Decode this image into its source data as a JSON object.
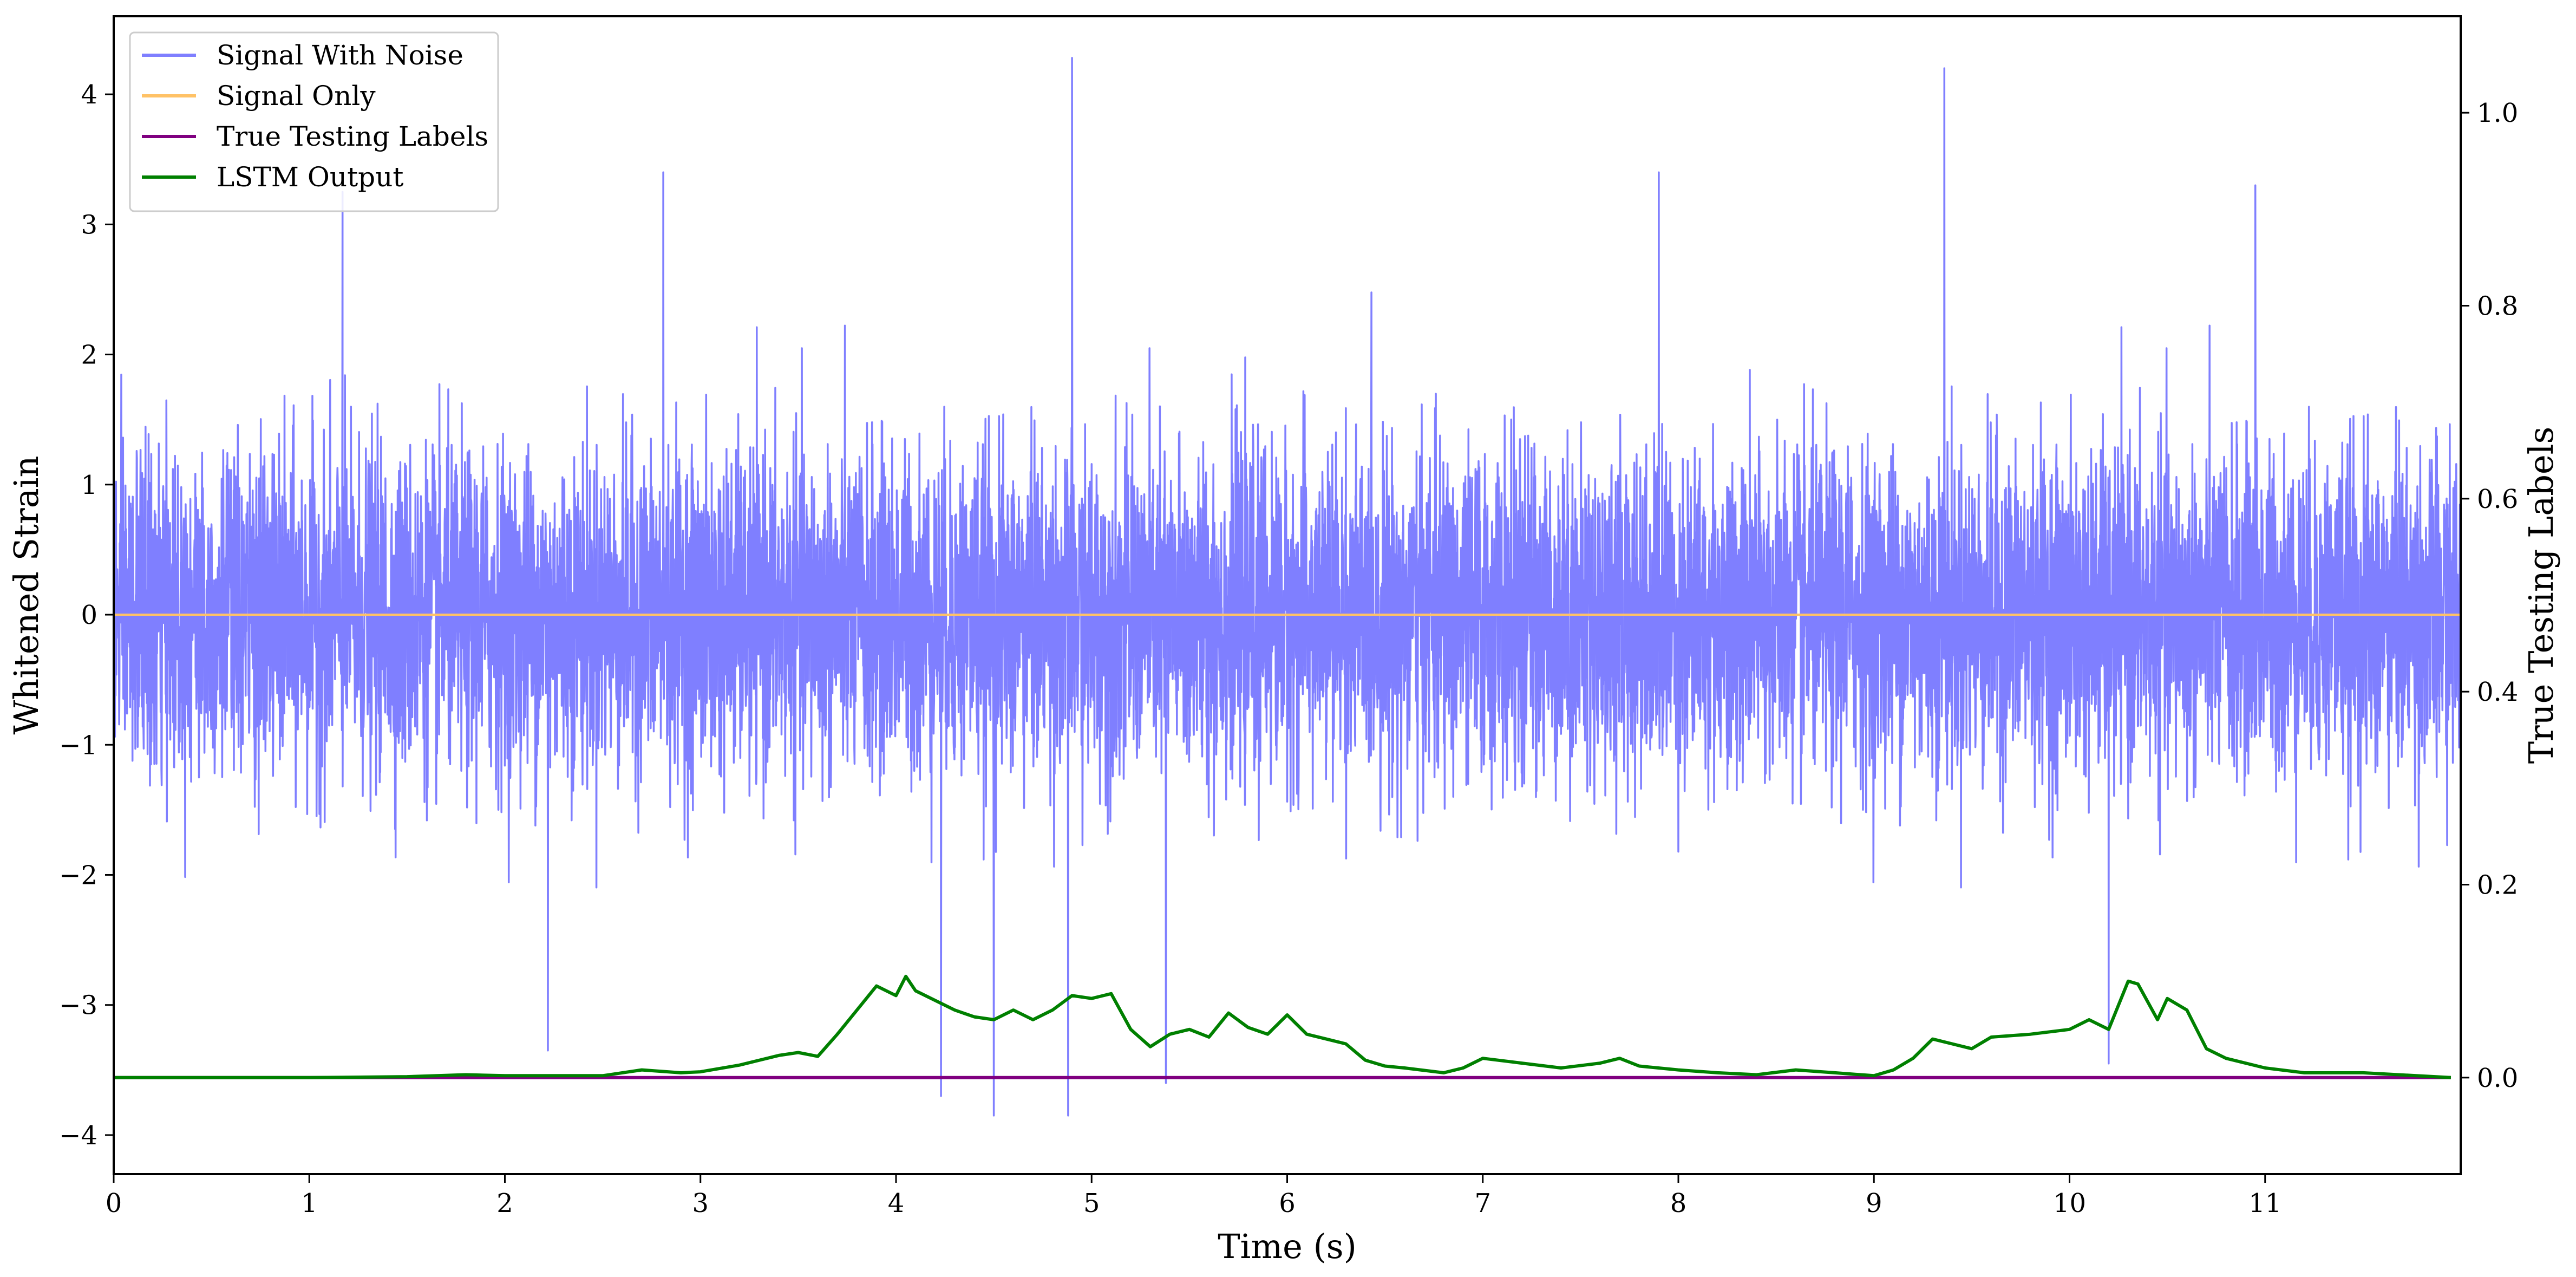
{
  "chart_data": {
    "type": "line",
    "title": "",
    "xlabel": "Time (s)",
    "ylabel_left": "Whitened Strain",
    "ylabel_right": "True Testing Labels",
    "xlim": [
      0,
      12
    ],
    "ylim_left": [
      -4.3,
      4.6
    ],
    "ylim_right": [
      -0.1,
      1.1
    ],
    "x_ticks": [
      0,
      1,
      2,
      3,
      4,
      5,
      6,
      7,
      8,
      9,
      10,
      11
    ],
    "y_ticks_left": [
      -4,
      -3,
      -2,
      -1,
      0,
      1,
      2,
      3,
      4
    ],
    "y_ticks_right": [
      0.0,
      0.2,
      0.4,
      0.6,
      0.8,
      1.0
    ],
    "y_tick_labels_left": [
      "−4",
      "−3",
      "−2",
      "−1",
      "0",
      "1",
      "2",
      "3",
      "4"
    ],
    "y_tick_labels_right": [
      "0.0",
      "0.2",
      "0.4",
      "0.6",
      "0.8",
      "1.0"
    ],
    "grid": false,
    "legend_position": "top-left",
    "series": [
      {
        "name": "Signal With Noise",
        "axis": "left",
        "color": "#7f7fff",
        "style": "dense noise trace",
        "x_range": [
          0,
          12
        ],
        "approx_envelope": [
          -2.0,
          2.0
        ],
        "spikes": [
          {
            "x": 1.17,
            "y": 3.25
          },
          {
            "x": 2.81,
            "y": 3.4
          },
          {
            "x": 4.9,
            "y": 4.28
          },
          {
            "x": 7.9,
            "y": 3.4
          },
          {
            "x": 9.36,
            "y": 4.2
          },
          {
            "x": 10.95,
            "y": 3.3
          },
          {
            "x": 4.23,
            "y": -3.7
          },
          {
            "x": 4.5,
            "y": -3.85
          },
          {
            "x": 4.88,
            "y": -3.85
          },
          {
            "x": 5.38,
            "y": -3.6
          },
          {
            "x": 2.22,
            "y": -3.35
          },
          {
            "x": 10.2,
            "y": -3.45
          }
        ]
      },
      {
        "name": "Signal Only",
        "axis": "left",
        "color": "#ffc266",
        "x": [
          0,
          12
        ],
        "values": [
          0,
          0
        ]
      },
      {
        "name": "True Testing Labels",
        "axis": "right",
        "color": "#800080",
        "x": [
          0,
          11.95
        ],
        "values": [
          0,
          0
        ]
      },
      {
        "name": "LSTM Output",
        "axis": "right",
        "color": "#008000",
        "x": [
          0,
          0.5,
          1.0,
          1.5,
          1.8,
          2.0,
          2.5,
          2.7,
          2.9,
          3.0,
          3.2,
          3.4,
          3.5,
          3.6,
          3.7,
          3.8,
          3.9,
          4.0,
          4.05,
          4.1,
          4.2,
          4.3,
          4.4,
          4.5,
          4.6,
          4.7,
          4.8,
          4.9,
          5.0,
          5.1,
          5.2,
          5.3,
          5.4,
          5.5,
          5.6,
          5.7,
          5.8,
          5.9,
          6.0,
          6.1,
          6.2,
          6.3,
          6.4,
          6.5,
          6.6,
          6.8,
          6.9,
          7.0,
          7.2,
          7.4,
          7.6,
          7.7,
          7.8,
          8.0,
          8.2,
          8.4,
          8.6,
          8.8,
          9.0,
          9.1,
          9.2,
          9.3,
          9.4,
          9.5,
          9.6,
          9.8,
          10.0,
          10.1,
          10.2,
          10.3,
          10.35,
          10.45,
          10.5,
          10.6,
          10.7,
          10.8,
          11.0,
          11.2,
          11.5,
          11.95
        ],
        "values": [
          0.0,
          0.0,
          0.0,
          0.001,
          0.003,
          0.002,
          0.002,
          0.008,
          0.005,
          0.006,
          0.013,
          0.023,
          0.026,
          0.022,
          0.045,
          0.07,
          0.095,
          0.085,
          0.105,
          0.09,
          0.08,
          0.07,
          0.063,
          0.06,
          0.07,
          0.06,
          0.07,
          0.085,
          0.082,
          0.087,
          0.05,
          0.032,
          0.045,
          0.05,
          0.042,
          0.067,
          0.052,
          0.045,
          0.065,
          0.045,
          0.04,
          0.035,
          0.018,
          0.012,
          0.01,
          0.005,
          0.01,
          0.02,
          0.015,
          0.01,
          0.015,
          0.02,
          0.012,
          0.008,
          0.005,
          0.003,
          0.008,
          0.005,
          0.002,
          0.008,
          0.02,
          0.04,
          0.035,
          0.03,
          0.042,
          0.045,
          0.05,
          0.06,
          0.05,
          0.1,
          0.097,
          0.06,
          0.082,
          0.07,
          0.03,
          0.02,
          0.01,
          0.005,
          0.005,
          0.0
        ]
      }
    ]
  }
}
